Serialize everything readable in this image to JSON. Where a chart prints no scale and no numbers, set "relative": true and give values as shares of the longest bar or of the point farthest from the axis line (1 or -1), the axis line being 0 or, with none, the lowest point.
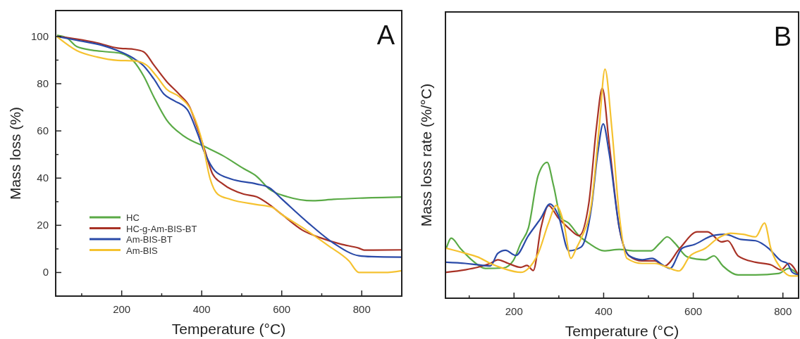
{
  "chart_data": [
    {
      "type": "line",
      "title": "A",
      "xlabel": "Temperature (°C)",
      "ylabel": "Mass loss (%)",
      "xlim": [
        35,
        900
      ],
      "ylim": [
        -10,
        111
      ],
      "xticks": [
        {
          "value": 100,
          "label": null
        },
        200,
        {
          "value": 300,
          "label": null
        },
        400,
        {
          "value": 500,
          "label": null
        },
        600,
        {
          "value": 700,
          "label": null
        },
        800
      ],
      "yticks": [
        {
          "value": -10,
          "label": null
        },
        0,
        {
          "value": 10,
          "label": null
        },
        20,
        {
          "value": 30,
          "label": null
        },
        40,
        {
          "value": 50,
          "label": null
        },
        60,
        {
          "value": 70,
          "label": null
        },
        80,
        {
          "value": 90,
          "label": null
        },
        100
      ],
      "legend": "bottom left",
      "series": [
        {
          "name": "HC",
          "color": "#5aaa46",
          "x": [
            40,
            62,
            88,
            126,
            165,
            197,
            229,
            255,
            280,
            312,
            357,
            408,
            453,
            505,
            537,
            569,
            614,
            678,
            729,
            793,
            900
          ],
          "values": [
            100.5,
            99.5,
            95.7,
            94.2,
            93.5,
            92.9,
            89.7,
            83.2,
            74.5,
            64.7,
            57.6,
            53.3,
            49.5,
            44,
            40.8,
            35.3,
            32.1,
            30.4,
            31,
            31.5,
            32
          ]
        },
        {
          "name": "HC-g-Am-BIS-BT",
          "color": "#a83226",
          "x": [
            40,
            88,
            139,
            190,
            229,
            255,
            280,
            312,
            344,
            370,
            389,
            408,
            427,
            453,
            505,
            537,
            569,
            601,
            652,
            697,
            748,
            793,
            806,
            900
          ],
          "values": [
            100,
            98.9,
            97.3,
            95.1,
            94.6,
            93.5,
            88,
            81,
            75.5,
            70.1,
            61.4,
            51.6,
            41.8,
            37.5,
            33.2,
            32.1,
            28.8,
            24.5,
            17.9,
            14.7,
            12,
            10.3,
            9.5,
            9.6
          ]
        },
        {
          "name": "Am-BIS-BT",
          "color": "#2a4aa8",
          "x": [
            40,
            88,
            152,
            197,
            229,
            255,
            280,
            306,
            331,
            364,
            389,
            408,
            434,
            472,
            537,
            569,
            601,
            665,
            729,
            793,
            825,
            900
          ],
          "values": [
            100,
            98.4,
            96.2,
            93.5,
            90.8,
            87.5,
            82.1,
            75.5,
            72.8,
            69,
            59.2,
            50.5,
            42.9,
            39.7,
            37.5,
            35.9,
            31,
            21.2,
            12.5,
            7.1,
            6.7,
            6.5
          ]
        },
        {
          "name": "Am-BIS",
          "color": "#f5c230",
          "x": [
            40,
            88,
            139,
            190,
            229,
            261,
            287,
            312,
            344,
            376,
            402,
            421,
            440,
            472,
            537,
            575,
            601,
            652,
            716,
            768,
            793,
            857,
            900
          ],
          "values": [
            99.7,
            94,
            91.3,
            89.9,
            89.7,
            88,
            83.2,
            77.7,
            74.5,
            67.9,
            54.9,
            39.7,
            33.2,
            31,
            28.8,
            27.7,
            24.5,
            19,
            11.4,
            4.9,
            0,
            0,
            0.8
          ]
        }
      ]
    },
    {
      "type": "line",
      "title": "B",
      "xlabel": "Temperature (°C)",
      "ylabel": "Mass loss rate (%/°C)",
      "relative": true,
      "xlim": [
        47,
        835
      ],
      "xticks": [
        {
          "value": 100,
          "label": null
        },
        200,
        {
          "value": 300,
          "label": null
        },
        400,
        {
          "value": 500,
          "label": null
        },
        600,
        {
          "value": 700,
          "label": null
        },
        800
      ],
      "series": [
        {
          "color": "#5aaa46",
          "x": [
            49,
            60,
            80,
            108,
            136,
            176,
            198,
            215,
            232,
            254,
            274,
            288,
            305,
            322,
            345,
            367,
            401,
            435,
            469,
            506,
            525,
            542,
            559,
            587,
            627,
            646,
            666,
            700,
            739,
            790,
            813,
            834
          ],
          "values": [
            0.218,
            0.262,
            0.218,
            0.163,
            0.13,
            0.132,
            0.163,
            0.24,
            0.306,
            0.537,
            0.593,
            0.493,
            0.35,
            0.328,
            0.273,
            0.24,
            0.207,
            0.213,
            0.207,
            0.207,
            0.24,
            0.268,
            0.24,
            0.18,
            0.168,
            0.185,
            0.141,
            0.102,
            0.102,
            0.108,
            0.13,
            0.102
          ]
        },
        {
          "color": "#a83226",
          "x": [
            49,
            91,
            119,
            147,
            164,
            187,
            215,
            229,
            243,
            260,
            277,
            299,
            322,
            345,
            367,
            384,
            397,
            412,
            435,
            457,
            486,
            514,
            536,
            570,
            609,
            632,
            663,
            677,
            700,
            739,
            773,
            796,
            813,
            834
          ],
          "values": [
            0.113,
            0.124,
            0.135,
            0.152,
            0.168,
            0.152,
            0.135,
            0.143,
            0.121,
            0.306,
            0.405,
            0.35,
            0.306,
            0.273,
            0.416,
            0.747,
            0.917,
            0.681,
            0.306,
            0.185,
            0.163,
            0.163,
            0.141,
            0.218,
            0.29,
            0.29,
            0.246,
            0.251,
            0.185,
            0.157,
            0.146,
            0.124,
            0.152,
            0.102
          ]
        },
        {
          "color": "#2a4aa8",
          "x": [
            49,
            91,
            119,
            147,
            164,
            181,
            204,
            232,
            260,
            280,
            299,
            322,
            350,
            373,
            387,
            399,
            412,
            435,
            457,
            486,
            508,
            531,
            548,
            575,
            603,
            643,
            671,
            706,
            739,
            768,
            796,
            810,
            821,
            834
          ],
          "values": [
            0.157,
            0.152,
            0.146,
            0.141,
            0.196,
            0.209,
            0.187,
            0.273,
            0.35,
            0.411,
            0.361,
            0.207,
            0.224,
            0.4,
            0.637,
            0.761,
            0.637,
            0.306,
            0.185,
            0.168,
            0.174,
            0.146,
            0.13,
            0.218,
            0.235,
            0.273,
            0.279,
            0.257,
            0.251,
            0.218,
            0.163,
            0.152,
            0.113,
            0.102
          ]
        },
        {
          "color": "#f5c230",
          "x": [
            49,
            91,
            119,
            147,
            176,
            215,
            232,
            254,
            277,
            294,
            311,
            327,
            339,
            350,
            373,
            390,
            403,
            418,
            435,
            452,
            486,
            514,
            542,
            568,
            593,
            627,
            655,
            683,
            711,
            739,
            759,
            773,
            796,
            818,
            834
          ],
          "values": [
            0.218,
            0.196,
            0.18,
            0.152,
            0.13,
            0.113,
            0.13,
            0.196,
            0.328,
            0.405,
            0.328,
            0.174,
            0.218,
            0.262,
            0.416,
            0.747,
            1,
            0.747,
            0.361,
            0.174,
            0.152,
            0.152,
            0.135,
            0.119,
            0.185,
            0.218,
            0.262,
            0.284,
            0.279,
            0.268,
            0.328,
            0.218,
            0.13,
            0.097,
            0.097
          ]
        }
      ]
    }
  ]
}
